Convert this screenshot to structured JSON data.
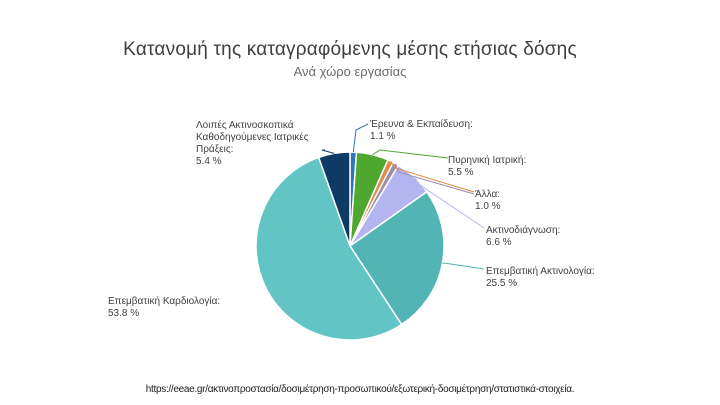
{
  "chart_data": {
    "type": "pie",
    "title": "Κατανομή της καταγραφόμενης μέσης ετήσιας δόσης",
    "subtitle": "Ανά χώρο εργασίας",
    "slices": [
      {
        "label": "Έρευνα & Εκπαίδευση:",
        "percent_text": "1.1 %",
        "value": 1.1,
        "color": "#2e75b6"
      },
      {
        "label": "Πυρηνική Ιατρική:",
        "percent_text": "5.5 %",
        "value": 5.5,
        "color": "#4ea72e"
      },
      {
        "label": "Άλλα:",
        "percent_text": "1.0 %",
        "value": 1.0,
        "color": "#e08a4a"
      },
      {
        "label": "Άλλα:",
        "percent_text": "1.0 %",
        "value": 1.0,
        "color": "#9e8ba8"
      },
      {
        "label": "Ακτινοδιάγνωση:",
        "percent_text": "6.6 %",
        "value": 6.6,
        "color": "#b4b4f0"
      },
      {
        "label": "Επεμβατική Ακτινολογία:",
        "percent_text": "25.5 %",
        "value": 25.5,
        "color": "#52b4b4"
      },
      {
        "label": "Επεμβατική Καρδιολογία:",
        "percent_text": "53.8 %",
        "value": 53.8,
        "color": "#62c4c4"
      },
      {
        "label": "Λοιπές Ακτινοσκοπικά Καθοδηγούμενες Ιατρικές Πράξεις:",
        "percent_text": "5.4 %",
        "value": 5.4,
        "color": "#0d3b66"
      }
    ]
  },
  "footer": {
    "source_url": "https://eeae.gr/ακτινοπροστασία/δοσιμέτρηση-προσωπικού/εξωτερική-δοσιμέτρηση/στατιστικά-στοιχεία."
  }
}
